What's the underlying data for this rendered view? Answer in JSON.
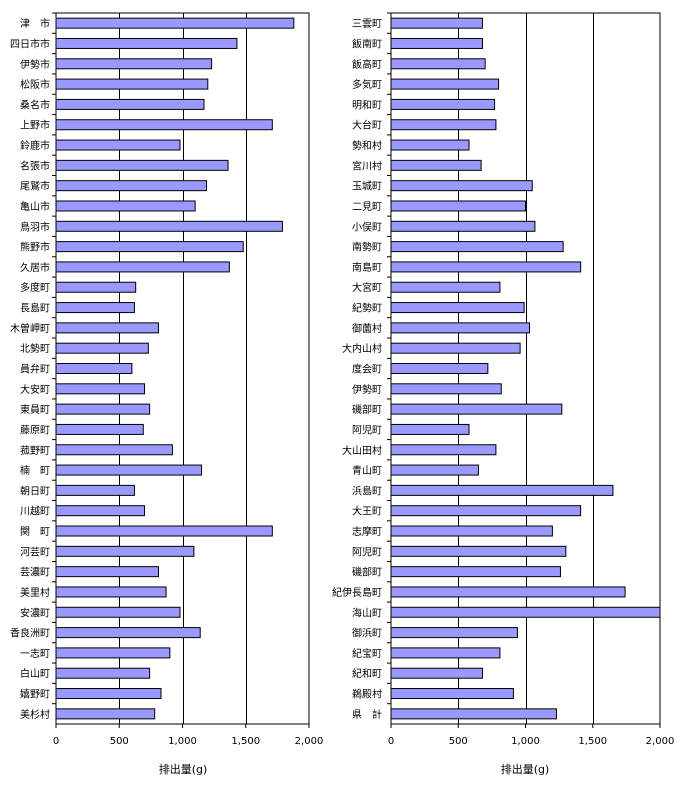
{
  "chart_data": [
    {
      "type": "bar",
      "orientation": "horizontal",
      "xlabel": "排出量(g)",
      "xlim": [
        0,
        2000
      ],
      "xticks": [
        0,
        500,
        1000,
        1500,
        2000
      ],
      "xtick_labels": [
        "0",
        "500",
        "1,000",
        "1,500",
        "2,000"
      ],
      "grid": "vertical",
      "bar_color": "#9999ff",
      "categories": [
        "津　市",
        "四日市市",
        "伊勢市",
        "松阪市",
        "桑名市",
        "上野市",
        "鈴鹿市",
        "名張市",
        "尾鷲市",
        "亀山市",
        "鳥羽市",
        "熊野市",
        "久居市",
        "多度町",
        "長島町",
        "木曽岬町",
        "北勢町",
        "員弁町",
        "大安町",
        "東員町",
        "藤原町",
        "菰野町",
        "楠　町",
        "朝日町",
        "川越町",
        "関　町",
        "河芸町",
        "芸濃町",
        "美里村",
        "安濃町",
        "香良洲町",
        "一志町",
        "白山町",
        "嬉野町",
        "美杉村"
      ],
      "values": [
        1880,
        1430,
        1230,
        1200,
        1170,
        1710,
        980,
        1360,
        1190,
        1100,
        1790,
        1480,
        1370,
        630,
        620,
        810,
        730,
        600,
        700,
        740,
        690,
        920,
        1150,
        620,
        700,
        1710,
        1090,
        810,
        870,
        980,
        1140,
        900,
        740,
        830,
        780
      ]
    },
    {
      "type": "bar",
      "orientation": "horizontal",
      "xlabel": "排出量(g)",
      "xlim": [
        0,
        2000
      ],
      "xticks": [
        0,
        500,
        1000,
        1500,
        2000
      ],
      "xtick_labels": [
        "0",
        "500",
        "1,000",
        "1,500",
        "2,000"
      ],
      "grid": "vertical",
      "bar_color": "#9999ff",
      "categories": [
        "三雲町",
        "飯南町",
        "飯高町",
        "多気町",
        "明和町",
        "大台町",
        "勢和村",
        "宮川村",
        "玉城町",
        "二見町",
        "小俣町",
        "南勢町",
        "南島町",
        "大宮町",
        "紀勢町",
        "御薗村",
        "大内山村",
        "度会町",
        "伊勢町",
        "磯部町",
        "阿児町",
        "大山田村",
        "青山町",
        "浜島町",
        "大王町",
        "志摩町",
        "阿児町",
        "磯部町",
        "紀伊長島町",
        "海山町",
        "御浜町",
        "紀宝町",
        "紀和町",
        "鵜殿村",
        "県　計"
      ],
      "values": [
        680,
        680,
        700,
        800,
        770,
        780,
        580,
        670,
        1050,
        1000,
        1070,
        1280,
        1410,
        810,
        990,
        1030,
        960,
        720,
        820,
        1270,
        580,
        780,
        650,
        1650,
        1410,
        1200,
        1300,
        1260,
        1740,
        2060,
        940,
        810,
        680,
        910,
        1230
      ]
    }
  ]
}
